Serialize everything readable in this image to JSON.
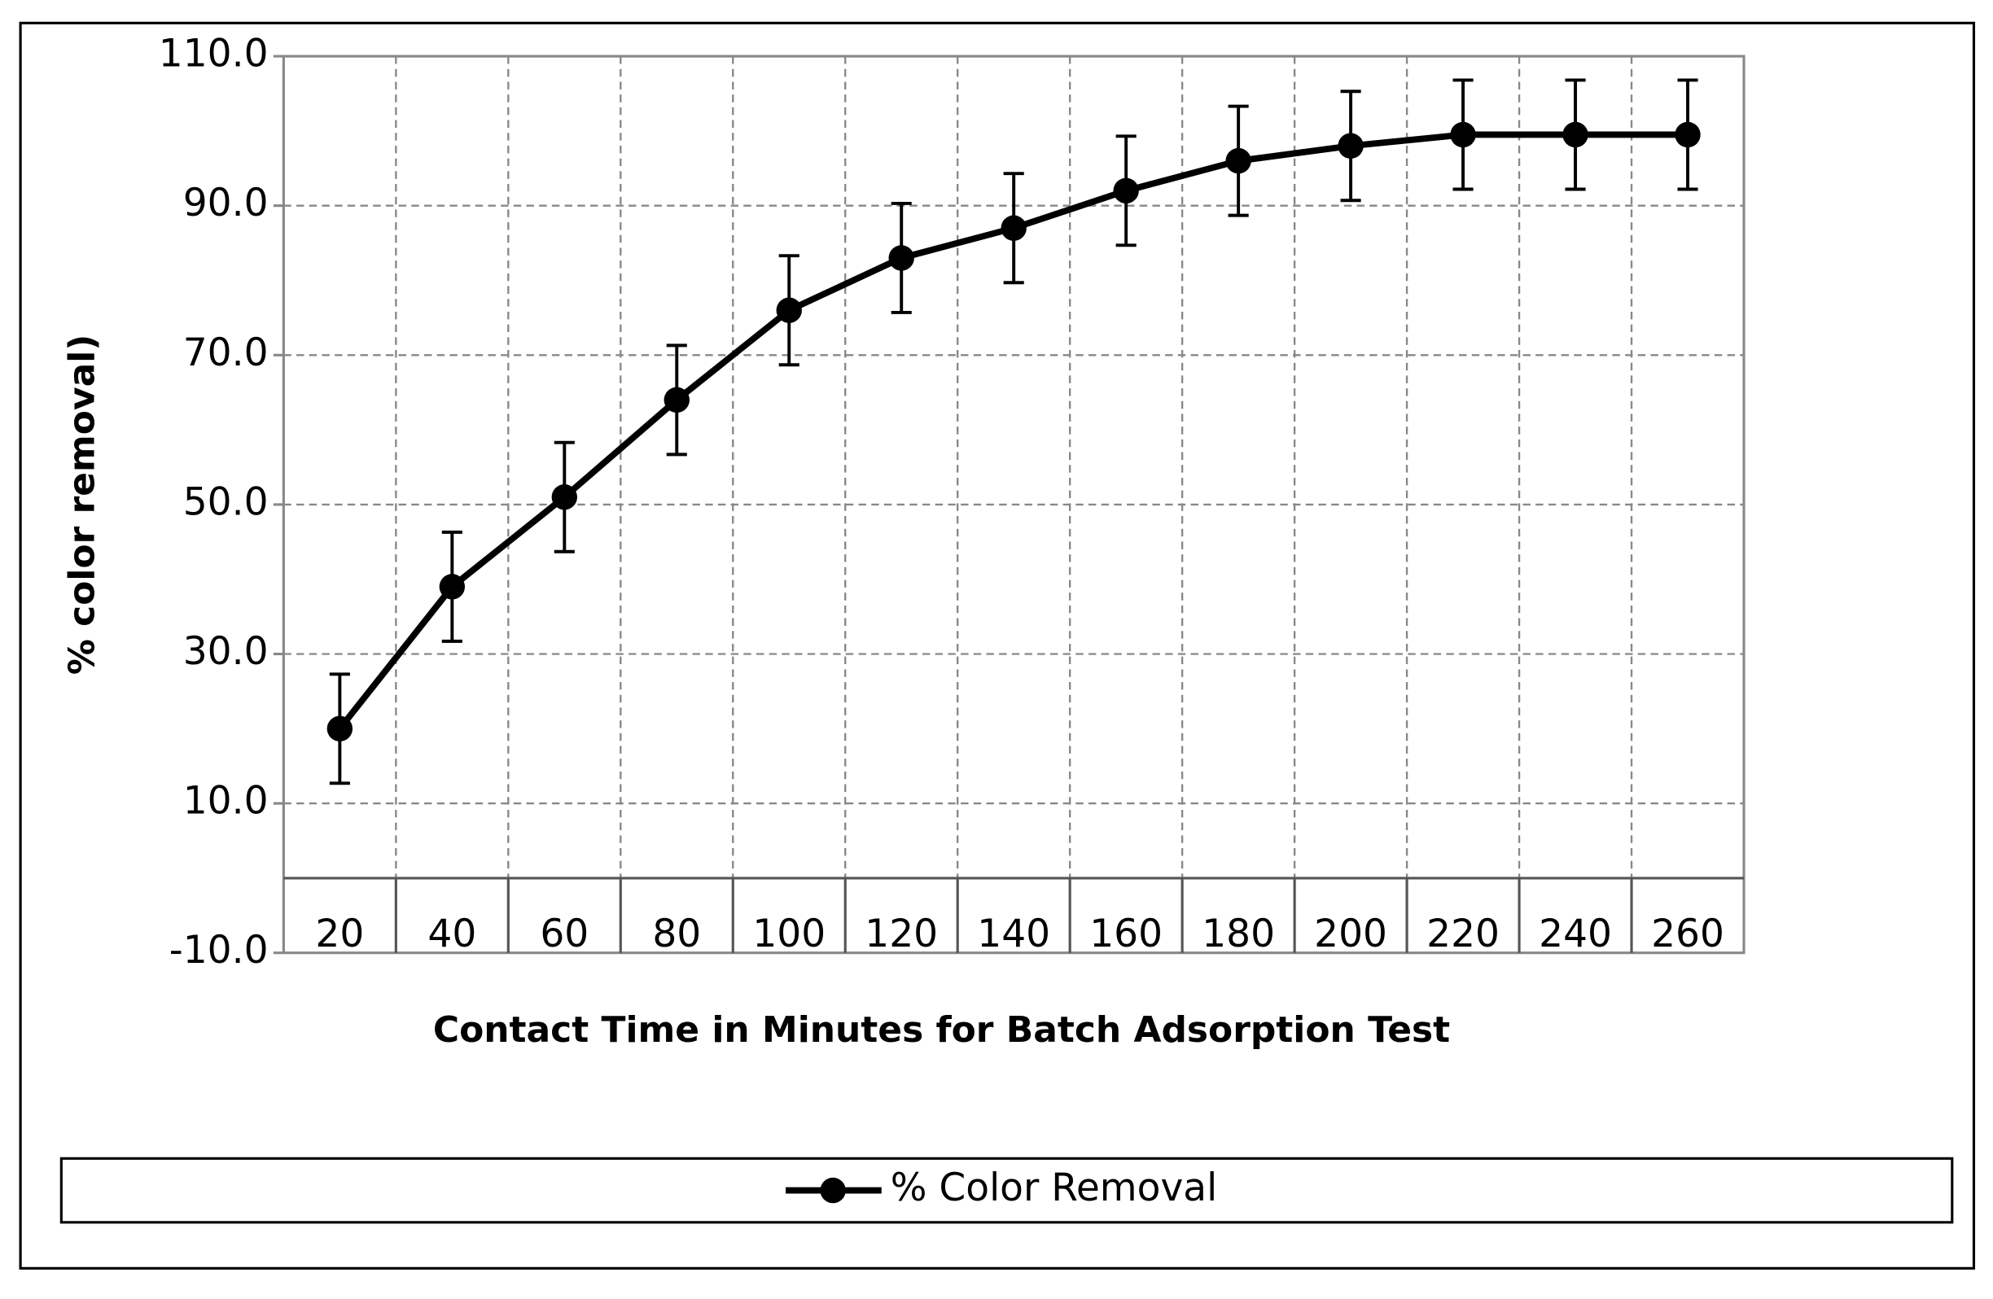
{
  "chart_data": {
    "type": "line",
    "x_label": "Contact Time in Minutes for Batch Adsorption Test",
    "y_label": "% color removal)",
    "categories": [
      "20",
      "40",
      "60",
      "80",
      "100",
      "120",
      "140",
      "160",
      "180",
      "200",
      "220",
      "240",
      "260"
    ],
    "series": [
      {
        "name": "% Color Removal",
        "color": "#000000",
        "values": [
          20,
          39,
          51,
          64,
          76,
          83,
          87,
          92,
          96,
          98,
          99.5,
          99.5,
          99.5
        ],
        "errors": [
          7.3,
          7.3,
          7.3,
          7.3,
          7.3,
          7.3,
          7.3,
          7.3,
          7.3,
          7.3,
          7.3,
          7.3,
          7.3
        ]
      }
    ],
    "ylim": [
      -10,
      110
    ],
    "yticks": [
      {
        "value": -10,
        "label": "-10.0"
      },
      {
        "value": 10,
        "label": "10.0"
      },
      {
        "value": 30,
        "label": "30.0"
      },
      {
        "value": 50,
        "label": "50.0"
      },
      {
        "value": 70,
        "label": "70.0"
      },
      {
        "value": 90,
        "label": "90.0"
      },
      {
        "value": 110,
        "label": "110.0"
      }
    ],
    "grid": true,
    "legend": "bottom"
  }
}
